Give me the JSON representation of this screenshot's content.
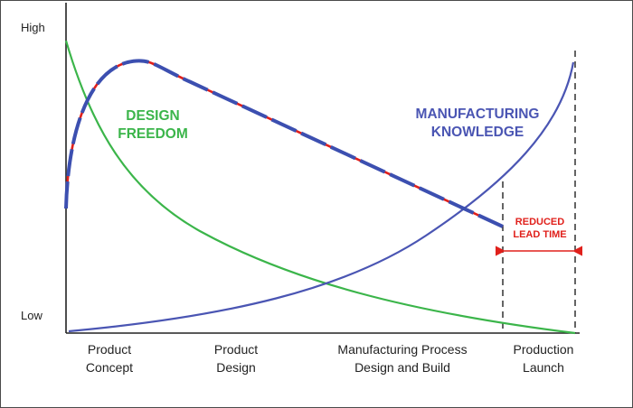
{
  "axis": {
    "y_high": "High",
    "y_low": "Low"
  },
  "labels": {
    "design_freedom": [
      "DESIGN",
      "FREEDOM"
    ],
    "manufacturing_knowledge": [
      "MANUFACTURING",
      "KNOWLEDGE"
    ],
    "reduced_lead_time": [
      "REDUCED",
      "LEAD TIME"
    ]
  },
  "stages": [
    {
      "line1": "Product",
      "line2": "Concept"
    },
    {
      "line1": "Product",
      "line2": "Design"
    },
    {
      "line1": "Manufacturing Process",
      "line2": "Design and  Build"
    },
    {
      "line1": "Production",
      "line2": "Launch"
    }
  ],
  "colors": {
    "green": "#3bb54a",
    "blue": "#4a55b3",
    "red": "#e0201b",
    "axis": "#222222"
  }
}
